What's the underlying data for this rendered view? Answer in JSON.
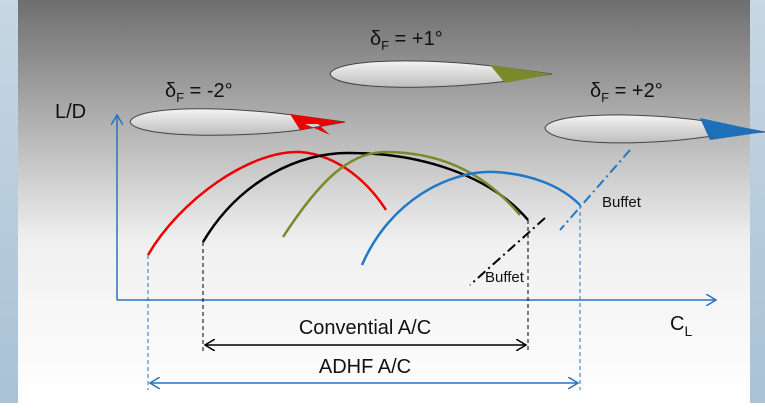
{
  "y_axis_label": "L/D",
  "x_axis_label": {
    "symbol": "C",
    "sub": "L"
  },
  "airfoils": [
    {
      "symbol": "δ",
      "sub": "F",
      "text": " = -2°"
    },
    {
      "symbol": "δ",
      "sub": "F",
      "text": " = +1°"
    },
    {
      "symbol": "δ",
      "sub": "F",
      "text": " = +2°"
    }
  ],
  "buffet_labels": [
    "Buffet",
    "Buffet"
  ],
  "ranges": [
    "Convential A/C",
    "ADHF A/C"
  ]
}
